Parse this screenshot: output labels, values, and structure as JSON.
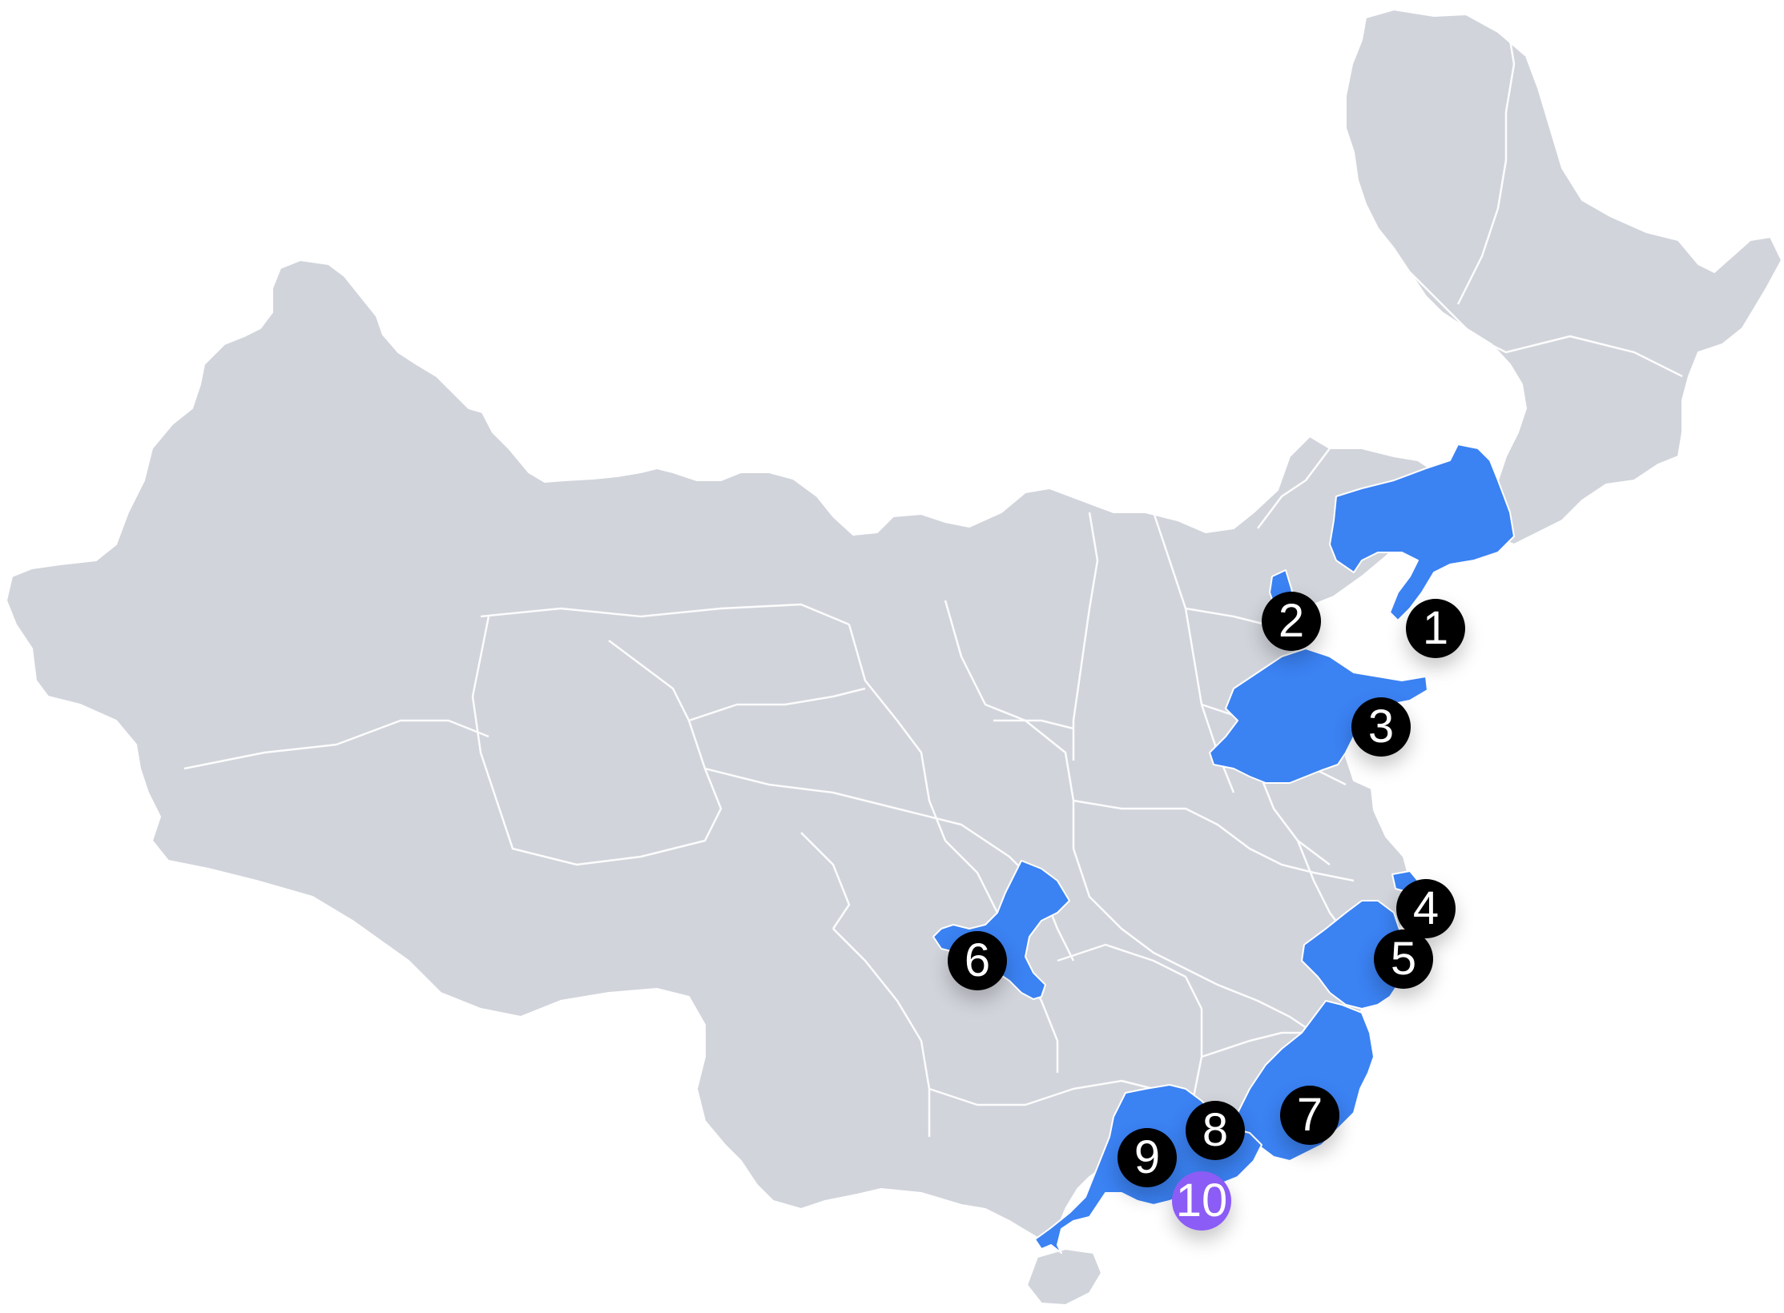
{
  "colors": {
    "land": "#d1d4db",
    "border": "#ffffff",
    "highlight": "#3b82f3",
    "marker": "#000000",
    "marker_active": "#8b5cf6",
    "marker_text": "#ffffff"
  },
  "highlighted_regions": [
    "liaoning",
    "tianjin",
    "shandong",
    "shanghai",
    "zhejiang",
    "chongqing",
    "fujian",
    "guangdong"
  ],
  "markers": [
    {
      "label": "1",
      "region": "liaoning",
      "active": false
    },
    {
      "label": "2",
      "region": "tianjin",
      "active": false
    },
    {
      "label": "3",
      "region": "shandong",
      "active": false
    },
    {
      "label": "4",
      "region": "shanghai",
      "active": false
    },
    {
      "label": "5",
      "region": "zhejiang",
      "active": false
    },
    {
      "label": "6",
      "region": "chongqing",
      "active": false
    },
    {
      "label": "7",
      "region": "fujian",
      "active": false
    },
    {
      "label": "8",
      "region": "guangdong",
      "active": false
    },
    {
      "label": "9",
      "region": "guangdong",
      "active": false
    },
    {
      "label": "10",
      "region": "guangdong",
      "active": true
    }
  ]
}
